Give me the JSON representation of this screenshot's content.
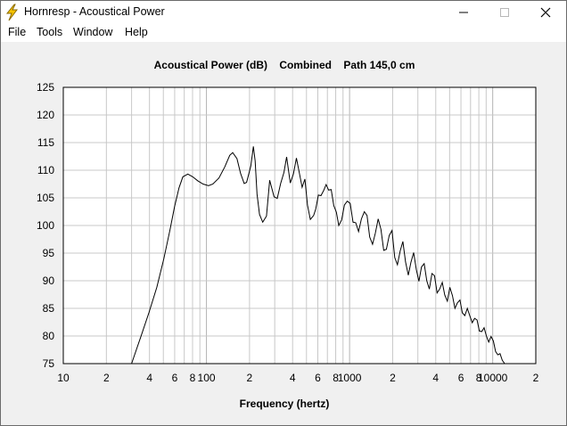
{
  "window": {
    "title": "Hornresp - Acoustical Power",
    "icon": "lightning-icon"
  },
  "menu": {
    "items": [
      "File",
      "Tools",
      "Window",
      "Help"
    ]
  },
  "colors": {
    "plot_background": "#ffffff",
    "grid": "#c8c8c8",
    "curve": "#000000",
    "window_background": "#f0f0f0",
    "icon_yellow": "#f7c400"
  },
  "chart_data": {
    "type": "line",
    "title": "Acoustical Power (dB)    Combined    Path 145,0 cm",
    "xlabel": "Frequency (hertz)",
    "ylabel": "",
    "xscale": "log",
    "xlim": [
      10,
      20000
    ],
    "ylim": [
      75,
      125
    ],
    "grid": true,
    "ytick_labels": [
      "125",
      "120",
      "115",
      "110",
      "105",
      "100",
      "95",
      "90",
      "85",
      "80",
      "75"
    ],
    "xtick_labels": [
      {
        "f": 10,
        "label": "10"
      },
      {
        "f": 20,
        "label": "2"
      },
      {
        "f": 40,
        "label": "4"
      },
      {
        "f": 60,
        "label": "6"
      },
      {
        "f": 80,
        "label": "8"
      },
      {
        "f": 100,
        "label": "100"
      },
      {
        "f": 200,
        "label": "2"
      },
      {
        "f": 400,
        "label": "4"
      },
      {
        "f": 600,
        "label": "6"
      },
      {
        "f": 800,
        "label": "8"
      },
      {
        "f": 1000,
        "label": "1000"
      },
      {
        "f": 2000,
        "label": "2"
      },
      {
        "f": 4000,
        "label": "4"
      },
      {
        "f": 6000,
        "label": "6"
      },
      {
        "f": 8000,
        "label": "8"
      },
      {
        "f": 10000,
        "label": "10000"
      },
      {
        "f": 20000,
        "label": "2"
      }
    ],
    "series": [
      {
        "points": [
          [
            30.0,
            75.0
          ],
          [
            34.6,
            79.7
          ],
          [
            39.6,
            84.2
          ],
          [
            45.0,
            88.8
          ],
          [
            50.4,
            94.0
          ],
          [
            55.7,
            99.3
          ],
          [
            59.9,
            103.4
          ],
          [
            64.3,
            106.8
          ],
          [
            68.4,
            108.8
          ],
          [
            74.1,
            109.3
          ],
          [
            80.2,
            108.8
          ],
          [
            86.8,
            108.1
          ],
          [
            94.8,
            107.5
          ],
          [
            103.4,
            107.2
          ],
          [
            110.9,
            107.5
          ],
          [
            122.3,
            108.6
          ],
          [
            134.2,
            110.6
          ],
          [
            145.4,
            112.7
          ],
          [
            152.6,
            113.2
          ],
          [
            163.5,
            112.1
          ],
          [
            173.3,
            109.4
          ],
          [
            183.6,
            107.6
          ],
          [
            190.7,
            107.8
          ],
          [
            204.3,
            110.8
          ],
          [
            212.9,
            114.3
          ],
          [
            218.9,
            111.7
          ],
          [
            225.8,
            105.7
          ],
          [
            234.9,
            102.0
          ],
          [
            247.4,
            100.6
          ],
          [
            262.8,
            101.7
          ],
          [
            276.6,
            108.2
          ],
          [
            296.8,
            105.2
          ],
          [
            312.3,
            104.9
          ],
          [
            330.2,
            107.6
          ],
          [
            347.8,
            109.6
          ],
          [
            363.1,
            112.4
          ],
          [
            385.1,
            107.7
          ],
          [
            405.0,
            109.3
          ],
          [
            425.2,
            112.2
          ],
          [
            446.7,
            109.4
          ],
          [
            466.3,
            106.9
          ],
          [
            487.7,
            108.4
          ],
          [
            507.9,
            103.7
          ],
          [
            532.3,
            101.1
          ],
          [
            560.8,
            101.8
          ],
          [
            580.9,
            103.0
          ],
          [
            605.6,
            105.5
          ],
          [
            631.4,
            105.4
          ],
          [
            658.7,
            106.3
          ],
          [
            686.1,
            107.4
          ],
          [
            714.1,
            106.4
          ],
          [
            744.1,
            106.5
          ],
          [
            775.7,
            103.6
          ],
          [
            808.3,
            102.4
          ],
          [
            840.8,
            100.0
          ],
          [
            879.8,
            101.0
          ],
          [
            920.3,
            103.7
          ],
          [
            963.9,
            104.4
          ],
          [
            1009.2,
            104.0
          ],
          [
            1056.6,
            100.6
          ],
          [
            1103.4,
            100.5
          ],
          [
            1155.2,
            98.9
          ],
          [
            1210.6,
            101.2
          ],
          [
            1268.2,
            102.5
          ],
          [
            1323.6,
            101.8
          ],
          [
            1381.8,
            97.9
          ],
          [
            1446.6,
            96.6
          ],
          [
            1513.6,
            98.6
          ],
          [
            1584.3,
            101.2
          ],
          [
            1656.8,
            99.3
          ],
          [
            1732.1,
            95.5
          ],
          [
            1808.3,
            95.7
          ],
          [
            1891.8,
            98.2
          ],
          [
            1979.8,
            99.1
          ],
          [
            2068.6,
            94.2
          ],
          [
            2161.1,
            92.9
          ],
          [
            2257.4,
            95.4
          ],
          [
            2357.4,
            97.1
          ],
          [
            2462.5,
            93.4
          ],
          [
            2571.3,
            91.0
          ],
          [
            2683.1,
            93.3
          ],
          [
            2802.4,
            95.1
          ],
          [
            2925.0,
            92.0
          ],
          [
            3050.2,
            89.9
          ],
          [
            3182.8,
            92.5
          ],
          [
            3320.3,
            93.1
          ],
          [
            3461.9,
            90.0
          ],
          [
            3611.0,
            88.5
          ],
          [
            3763.8,
            91.3
          ],
          [
            3924.1,
            90.9
          ],
          [
            4090.6,
            87.8
          ],
          [
            4262.2,
            88.5
          ],
          [
            4442.6,
            89.7
          ],
          [
            4628.3,
            87.4
          ],
          [
            4820.5,
            86.3
          ],
          [
            5020.5,
            88.8
          ],
          [
            5229.6,
            87.3
          ],
          [
            5444.1,
            85.0
          ],
          [
            5666.9,
            86.0
          ],
          [
            5898.2,
            86.5
          ],
          [
            6138.6,
            84.2
          ],
          [
            6388.0,
            83.7
          ],
          [
            6646.5,
            85.0
          ],
          [
            6912.8,
            83.7
          ],
          [
            7188.6,
            82.4
          ],
          [
            7474.0,
            83.2
          ],
          [
            7768.9,
            82.9
          ],
          [
            8071.8,
            80.9
          ],
          [
            8384.4,
            80.8
          ],
          [
            8709.1,
            81.5
          ],
          [
            9041.1,
            80.0
          ],
          [
            9383.4,
            78.9
          ],
          [
            9737.7,
            79.9
          ],
          [
            10100.0,
            79.1
          ],
          [
            10470.0,
            77.2
          ],
          [
            10860.0,
            76.6
          ],
          [
            11260.0,
            76.8
          ],
          [
            11660.0,
            75.6
          ],
          [
            12120.0,
            75.0
          ]
        ]
      }
    ]
  }
}
